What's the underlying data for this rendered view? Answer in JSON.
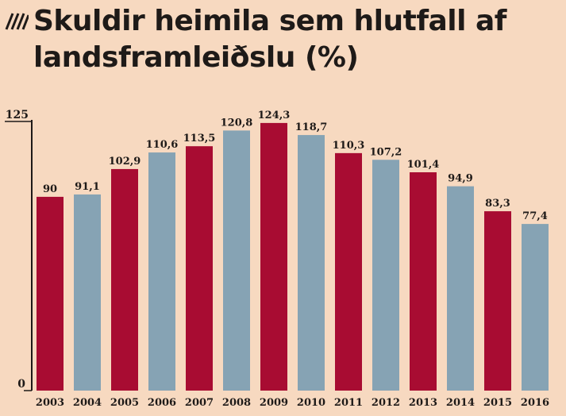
{
  "title": {
    "line1": "Skuldir heimila sem hlutfall af",
    "line2": "landsframleiðslu (%)",
    "icon": "diagonal-hatch-icon"
  },
  "colors": {
    "background": "#f7d9c0",
    "bar_red": "#a80c32",
    "bar_blue": "#86a3b4",
    "text": "#1e1a18"
  },
  "chart_data": {
    "type": "bar",
    "title": "Skuldir heimila sem hlutfall af landsframleiðslu (%)",
    "categories": [
      "2003",
      "2004",
      "2005",
      "2006",
      "2007",
      "2008",
      "2009",
      "2010",
      "2011",
      "2012",
      "2013",
      "2014",
      "2015",
      "2016"
    ],
    "values": [
      90,
      91.1,
      102.9,
      110.6,
      113.5,
      120.8,
      124.3,
      118.7,
      110.3,
      107.2,
      101.4,
      94.9,
      83.3,
      77.4
    ],
    "value_labels": [
      "90",
      "91,1",
      "102,9",
      "110,6",
      "113,5",
      "120,8",
      "124,3",
      "118,7",
      "110,3",
      "107,2",
      "101,4",
      "94,9",
      "83,3",
      "77,4"
    ],
    "bar_colors": [
      "#a80c32",
      "#86a3b4",
      "#a80c32",
      "#86a3b4",
      "#a80c32",
      "#86a3b4",
      "#a80c32",
      "#86a3b4",
      "#a80c32",
      "#86a3b4",
      "#a80c32",
      "#86a3b4",
      "#a80c32",
      "#86a3b4"
    ],
    "y_ticks": [
      "125",
      "0"
    ],
    "ylim": [
      0,
      125
    ],
    "xlabel": "",
    "ylabel": "",
    "grid": false
  }
}
